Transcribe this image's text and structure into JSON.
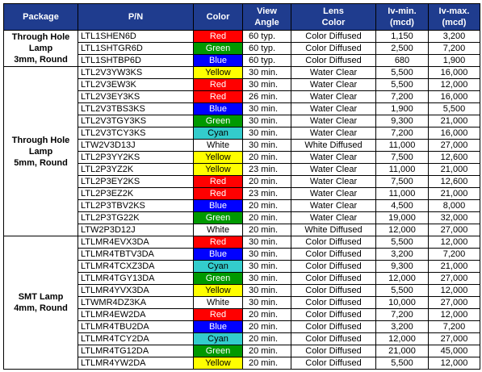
{
  "table": {
    "header": {
      "package": "Package",
      "pn": "P/N",
      "color": "Color",
      "angle": [
        "View",
        "Angle"
      ],
      "lens": [
        "Lens",
        "Color"
      ],
      "iv_min": [
        "Iv-min.",
        "(mcd)"
      ],
      "iv_max": [
        "Iv-max.",
        "(mcd)"
      ]
    },
    "groups": [
      {
        "package": [
          "Through Hole",
          "Lamp",
          "3mm, Round"
        ],
        "rows": [
          {
            "pn": "LTL1SHEN6D",
            "color": "Red",
            "angle": "60 typ.",
            "lens": "Color Diffused",
            "iv_min": "1,150",
            "iv_max": "3,200"
          },
          {
            "pn": "LTL1SHTGR6D",
            "color": "Green",
            "angle": "60 typ.",
            "lens": "Color Diffused",
            "iv_min": "2,500",
            "iv_max": "7,200"
          },
          {
            "pn": "LTL1SHTBP6D",
            "color": "Blue",
            "angle": "60 typ.",
            "lens": "Color Diffused",
            "iv_min": "680",
            "iv_max": "1,900"
          }
        ]
      },
      {
        "package": [
          "Through Hole",
          "Lamp",
          "5mm, Round"
        ],
        "rows": [
          {
            "pn": "LTL2V3YW3KS",
            "color": "Yellow",
            "angle": "30 min.",
            "lens": "Water Clear",
            "iv_min": "5,500",
            "iv_max": "16,000"
          },
          {
            "pn": "LTL2V3EW3K",
            "color": "Red",
            "angle": "30 min.",
            "lens": "Water Clear",
            "iv_min": "5,500",
            "iv_max": "12,000"
          },
          {
            "pn": "LTL2V3EY3KS",
            "color": "Red",
            "angle": "26 min.",
            "lens": "Water Clear",
            "iv_min": "7,200",
            "iv_max": "16,000"
          },
          {
            "pn": "LTL2V3TBS3KS",
            "color": "Blue",
            "angle": "30 min.",
            "lens": "Water Clear",
            "iv_min": "1,900",
            "iv_max": "5,500"
          },
          {
            "pn": "LTL2V3TGY3KS",
            "color": "Green",
            "angle": "30 min.",
            "lens": "Water Clear",
            "iv_min": "9,300",
            "iv_max": "21,000"
          },
          {
            "pn": "LTL2V3TCY3KS",
            "color": "Cyan",
            "angle": "30 min.",
            "lens": "Water Clear",
            "iv_min": "7,200",
            "iv_max": "16,000"
          },
          {
            "pn": "LTW2V3D13J",
            "color": "White",
            "angle": "30 min.",
            "lens": "White Diffused",
            "iv_min": "11,000",
            "iv_max": "27,000"
          },
          {
            "pn": "LTL2P3YY2KS",
            "color": "Yellow",
            "angle": "20 min.",
            "lens": "Water Clear",
            "iv_min": "7,500",
            "iv_max": "12,600"
          },
          {
            "pn": "LTL2P3YZ2K",
            "color": "Yellow",
            "angle": "23 min.",
            "lens": "Water Clear",
            "iv_min": "11,000",
            "iv_max": "21,000"
          },
          {
            "pn": "LTL2P3EY2KS",
            "color": "Red",
            "angle": "20 min.",
            "lens": "Water Clear",
            "iv_min": "7,500",
            "iv_max": "12,600"
          },
          {
            "pn": "LTL2P3EZ2K",
            "color": "Red",
            "angle": "23 min.",
            "lens": "Water Clear",
            "iv_min": "11,000",
            "iv_max": "21,000"
          },
          {
            "pn": "LTL2P3TBV2KS",
            "color": "Blue",
            "angle": "20 min.",
            "lens": "Water Clear",
            "iv_min": "4,500",
            "iv_max": "8,000"
          },
          {
            "pn": "LTL2P3TG22K",
            "color": "Green",
            "angle": "20 min.",
            "lens": "Water Clear",
            "iv_min": "19,000",
            "iv_max": "32,000"
          },
          {
            "pn": "LTW2P3D12J",
            "color": "White",
            "angle": "20 min.",
            "lens": "White Diffused",
            "iv_min": "12,000",
            "iv_max": "27,000"
          }
        ]
      },
      {
        "package": [
          "SMT Lamp",
          "4mm, Round"
        ],
        "rows": [
          {
            "pn": "LTLMR4EVX3DA",
            "color": "Red",
            "angle": "30 min.",
            "lens": "Color Diffused",
            "iv_min": "5,500",
            "iv_max": "12,000"
          },
          {
            "pn": "LTLMR4TBTV3DA",
            "color": "Blue",
            "angle": "30 min.",
            "lens": "Color Diffused",
            "iv_min": "3,200",
            "iv_max": "7,200"
          },
          {
            "pn": "LTLMR4TCXZ3DA",
            "color": "Cyan",
            "angle": "30 min.",
            "lens": "Color Diffused",
            "iv_min": "9,300",
            "iv_max": "21,000"
          },
          {
            "pn": "LTLMR4TGY13DA",
            "color": "Green",
            "angle": "30 min.",
            "lens": "Color Diffused",
            "iv_min": "12,000",
            "iv_max": "27,000"
          },
          {
            "pn": "LTLMR4YVX3DA",
            "color": "Yellow",
            "angle": "30 min.",
            "lens": "Color Diffused",
            "iv_min": "5,500",
            "iv_max": "12,000"
          },
          {
            "pn": "LTWMR4DZ3KA",
            "color": "White",
            "angle": "30 min.",
            "lens": "Color Diffused",
            "iv_min": "10,000",
            "iv_max": "27,000"
          },
          {
            "pn": "LTLMR4EW2DA",
            "color": "Red",
            "angle": "20 min.",
            "lens": "Color Diffused",
            "iv_min": "7,200",
            "iv_max": "12,000"
          },
          {
            "pn": "LTLMR4TBU2DA",
            "color": "Blue",
            "angle": "20 min.",
            "lens": "Color Diffused",
            "iv_min": "3,200",
            "iv_max": "7,200"
          },
          {
            "pn": "LTLMR4TCY2DA",
            "color": "Cyan",
            "angle": "20 min.",
            "lens": "Color Diffused",
            "iv_min": "12,000",
            "iv_max": "27,000"
          },
          {
            "pn": "LTLMR4TG12DA",
            "color": "Green",
            "angle": "20 min.",
            "lens": "Color Diffused",
            "iv_min": "21,000",
            "iv_max": "45,000"
          },
          {
            "pn": "LTLMR4YW2DA",
            "color": "Yellow",
            "angle": "20 min.",
            "lens": "Color Diffused",
            "iv_min": "5,500",
            "iv_max": "12,000"
          }
        ]
      }
    ]
  }
}
